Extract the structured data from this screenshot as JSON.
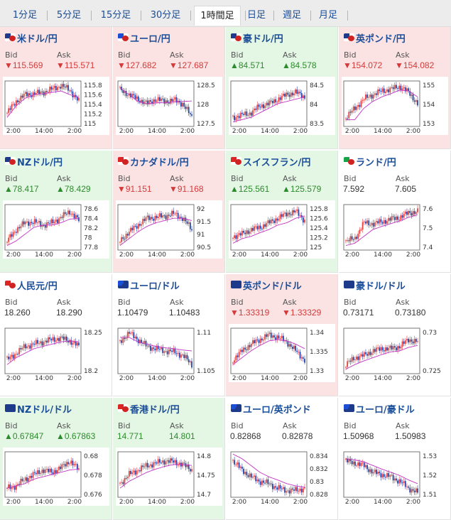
{
  "tabs": [
    "1分足",
    "5分足",
    "15分足",
    "30分足",
    "1時間足",
    "日足",
    "週足",
    "月足"
  ],
  "active_tab": 4,
  "labels": {
    "bid": "Bid",
    "ask": "Ask"
  },
  "colors": {
    "up": "#2d8a2d",
    "down": "#d43a3a",
    "candle_up": "#e8413c",
    "candle_down": "#2244aa",
    "ma": "#c133c1",
    "link": "#1a4d99"
  },
  "time_ticks": [
    "2:00",
    "14:00",
    "2:00"
  ],
  "pairs": [
    {
      "name": "米ドル/円",
      "flag": "us-jp-flag-icon",
      "dir": "down",
      "bid": "▼115.569",
      "ask": "▼115.571",
      "ylabels": [
        "115.8",
        "115.6",
        "115.4",
        "115.2",
        "115"
      ]
    },
    {
      "name": "ユーロ/円",
      "flag": "eu-jp-flag-icon",
      "dir": "down",
      "bid": "▼127.682",
      "ask": "▼127.687",
      "ylabels": [
        "128.5",
        "128",
        "127.5"
      ]
    },
    {
      "name": "豪ドル/円",
      "flag": "au-jp-flag-icon",
      "dir": "up",
      "bid": "▲84.571",
      "ask": "▲84.578",
      "ylabels": [
        "84.5",
        "84",
        "83.5"
      ]
    },
    {
      "name": "英ポンド/円",
      "flag": "gb-jp-flag-icon",
      "dir": "down",
      "bid": "▼154.072",
      "ask": "▼154.082",
      "ylabels": [
        "155",
        "154",
        "153"
      ]
    },
    {
      "name": "NZドル/円",
      "flag": "nz-jp-flag-icon",
      "dir": "up",
      "bid": "▲78.417",
      "ask": "▲78.429",
      "ylabels": [
        "78.6",
        "78.4",
        "78.2",
        "78",
        "77.8"
      ]
    },
    {
      "name": "カナダドル/円",
      "flag": "ca-jp-flag-icon",
      "dir": "down",
      "bid": "▼91.151",
      "ask": "▼91.168",
      "ylabels": [
        "92",
        "91.5",
        "91",
        "90.5"
      ]
    },
    {
      "name": "スイスフラン/円",
      "flag": "ch-jp-flag-icon",
      "dir": "up",
      "bid": "▲125.561",
      "ask": "▲125.579",
      "ylabels": [
        "125.8",
        "125.6",
        "125.4",
        "125.2",
        "125"
      ]
    },
    {
      "name": "ランド/円",
      "flag": "za-jp-flag-icon",
      "dir": "flat",
      "bid": "7.592",
      "ask": "7.605",
      "ylabels": [
        "7.6",
        "7.5",
        "7.4"
      ]
    },
    {
      "name": "人民元/円",
      "flag": "cn-jp-flag-icon",
      "dir": "flat",
      "bid": "18.260",
      "ask": "18.290",
      "ylabels": [
        "18.25",
        "18.2"
      ]
    },
    {
      "name": "ユーロ/ドル",
      "flag": "eu-us-flag-icon",
      "dir": "flat",
      "bid": "1.10479",
      "ask": "1.10483",
      "ylabels": [
        "1.11",
        "1.105"
      ]
    },
    {
      "name": "英ポンド/ドル",
      "flag": "gb-us-flag-icon",
      "dir": "down",
      "bid": "▼1.33319",
      "ask": "▼1.33329",
      "ylabels": [
        "1.34",
        "1.335",
        "1.33"
      ]
    },
    {
      "name": "豪ドル/ドル",
      "flag": "au-us-flag-icon",
      "dir": "flat",
      "bid": "0.73171",
      "ask": "0.73180",
      "ylabels": [
        "0.73",
        "0.725"
      ]
    },
    {
      "name": "NZドル/ドル",
      "flag": "nz-us-flag-icon",
      "dir": "up",
      "bid": "▲0.67847",
      "ask": "▲0.67863",
      "ylabels": [
        "0.68",
        "0.678",
        "0.676"
      ]
    },
    {
      "name": "香港ドル/円",
      "flag": "hk-jp-flag-icon",
      "dir": "up",
      "bid": "14.771",
      "ask": "14.801",
      "ylabels": [
        "14.8",
        "14.75",
        "14.7"
      ]
    },
    {
      "name": "ユーロ/英ポンド",
      "flag": "eu-gb-flag-icon",
      "dir": "flat",
      "bid": "0.82868",
      "ask": "0.82878",
      "ylabels": [
        "0.834",
        "0.832",
        "0.83",
        "0.828"
      ]
    },
    {
      "name": "ユーロ/豪ドル",
      "flag": "eu-au-flag-icon",
      "dir": "flat",
      "bid": "1.50968",
      "ask": "1.50983",
      "ylabels": [
        "1.53",
        "1.52",
        "1.51"
      ]
    }
  ]
}
